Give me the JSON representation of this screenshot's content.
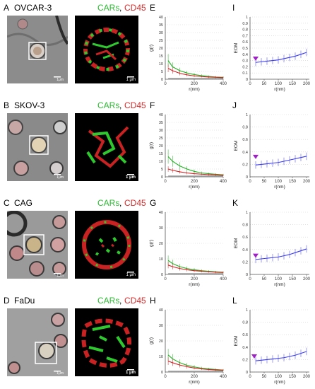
{
  "figure": {
    "rows": [
      {
        "letters": [
          "A",
          "E",
          "I"
        ],
        "cell_line": "OVCAR-3",
        "bf_scale": "1μm",
        "fl_scale": "1 μm",
        "g_ylabel": "g(r)",
        "g_xlabel": "r(nm)",
        "g_yticks": [
          "0",
          "5",
          "10",
          "15",
          "20",
          "25",
          "30",
          "35",
          "40"
        ],
        "g_xticks": [
          "0",
          "200",
          "400"
        ],
        "eom_ylabel": "EOM",
        "eom_xlabel": "r(nm)",
        "eom_yticks": [
          "0",
          "0.1",
          "0.2",
          "0.3",
          "0.4",
          "0.5",
          "0.6",
          "0.7",
          "0.8",
          "0.9",
          "1"
        ],
        "eom_xticks": [
          "0",
          "50",
          "100",
          "150",
          "200"
        ]
      },
      {
        "letters": [
          "B",
          "F",
          "J"
        ],
        "cell_line": "SKOV-3",
        "bf_scale": "1μm",
        "fl_scale": "1 μm",
        "g_ylabel": "g(r)",
        "g_xlabel": "r(nm)",
        "g_yticks": [
          "0",
          "5",
          "10",
          "15",
          "20",
          "25",
          "30",
          "35",
          "40"
        ],
        "g_xticks": [
          "0",
          "200",
          "400"
        ],
        "eom_ylabel": "EOM",
        "eom_xlabel": "r(nm)",
        "eom_yticks": [
          "0",
          "0.2",
          "0.4",
          "0.6",
          "0.8",
          "1"
        ],
        "eom_xticks": [
          "0",
          "50",
          "100",
          "150",
          "200"
        ]
      },
      {
        "letters": [
          "C",
          "G",
          "K"
        ],
        "cell_line": "CAG",
        "bf_scale": "1μm",
        "fl_scale": "1 μm",
        "g_ylabel": "g(r)",
        "g_xlabel": "r(nm)",
        "g_yticks": [
          "0",
          "10",
          "20",
          "30",
          "40"
        ],
        "g_xticks": [
          "0",
          "200",
          "400"
        ],
        "eom_ylabel": "EOM",
        "eom_xlabel": "r(nm)",
        "eom_yticks": [
          "0",
          "0.2",
          "0.4",
          "0.6",
          "0.8",
          "1"
        ],
        "eom_xticks": [
          "0",
          "50",
          "100",
          "150",
          "200"
        ]
      },
      {
        "letters": [
          "D",
          "H",
          "L"
        ],
        "cell_line": "FaDu",
        "bf_scale": "1μm",
        "fl_scale": "1 μm",
        "g_ylabel": "g(r)",
        "g_xlabel": "r(nm)",
        "g_yticks": [
          "0",
          "10",
          "20",
          "30",
          "40"
        ],
        "g_xticks": [
          "0",
          "200",
          "400"
        ],
        "eom_ylabel": "EOM",
        "eom_xlabel": "r(nm)",
        "eom_yticks": [
          "0",
          "0.2",
          "0.4",
          "0.6",
          "0.8",
          "1"
        ],
        "eom_xticks": [
          "0",
          "50",
          "100",
          "150",
          "200"
        ]
      }
    ],
    "cars_label": "CARs",
    "separator": ", ",
    "cd45_label": "CD45"
  },
  "colors": {
    "cars": "#2dbb33",
    "cd45": "#d82a2a",
    "eom_line": "#3a3aee",
    "marker": "#a020c8"
  },
  "chart_data": [
    {
      "type": "line",
      "panel": "E",
      "xlim": [
        0,
        400
      ],
      "ylim": [
        0,
        40
      ],
      "x": [
        20,
        50,
        100,
        150,
        200,
        250,
        300,
        350,
        400
      ],
      "series": [
        {
          "values": [
            12,
            8,
            5.5,
            4,
            3,
            2.3,
            1.8,
            1.4,
            1.2
          ],
          "color": "green"
        },
        {
          "values": [
            7,
            5.5,
            3.8,
            2.8,
            2.1,
            1.7,
            1.4,
            1.2,
            1.0
          ],
          "color": "red"
        },
        {
          "values": [
            0.5,
            0.5,
            0.5,
            0.5,
            0.5,
            0.5,
            0.5,
            0.5,
            0.5
          ],
          "color": "gray"
        }
      ]
    },
    {
      "type": "line",
      "panel": "F",
      "xlim": [
        0,
        400
      ],
      "ylim": [
        0,
        40
      ],
      "x": [
        20,
        50,
        100,
        150,
        200,
        250,
        300,
        350,
        400
      ],
      "series": [
        {
          "values": [
            13,
            10,
            7,
            5,
            3.5,
            2.5,
            2,
            1.6,
            1.3
          ],
          "color": "green"
        },
        {
          "values": [
            5,
            4.2,
            3.2,
            2.5,
            2,
            1.7,
            1.4,
            1.2,
            1.0
          ],
          "color": "red"
        },
        {
          "values": [
            0.5,
            0.5,
            0.5,
            0.5,
            0.5,
            0.5,
            0.5,
            0.5,
            0.5
          ],
          "color": "gray"
        }
      ]
    },
    {
      "type": "line",
      "panel": "G",
      "xlim": [
        0,
        400
      ],
      "ylim": [
        0,
        40
      ],
      "x": [
        20,
        50,
        100,
        150,
        200,
        250,
        300,
        350,
        400
      ],
      "series": [
        {
          "values": [
            9,
            7,
            5,
            3.8,
            3,
            2.4,
            2,
            1.7,
            1.4
          ],
          "color": "green"
        },
        {
          "values": [
            6,
            5,
            3.8,
            3,
            2.4,
            2,
            1.7,
            1.4,
            1.2
          ],
          "color": "red"
        },
        {
          "values": [
            0.5,
            0.5,
            0.5,
            0.5,
            0.5,
            0.5,
            0.5,
            0.5,
            0.5
          ],
          "color": "gray"
        }
      ]
    },
    {
      "type": "line",
      "panel": "H",
      "xlim": [
        0,
        400
      ],
      "ylim": [
        0,
        40
      ],
      "x": [
        20,
        50,
        100,
        150,
        200,
        250,
        300,
        350,
        400
      ],
      "series": [
        {
          "values": [
            11,
            8.5,
            6,
            4.3,
            3.3,
            2.5,
            2,
            1.6,
            1.3
          ],
          "color": "green"
        },
        {
          "values": [
            7,
            6,
            4.5,
            3.4,
            2.6,
            2,
            1.6,
            1.3,
            1.1
          ],
          "color": "red"
        },
        {
          "values": [
            0.5,
            0.5,
            0.5,
            0.5,
            0.5,
            0.5,
            0.5,
            0.5,
            0.5
          ],
          "color": "gray"
        }
      ]
    },
    {
      "type": "line",
      "panel": "I",
      "xlim": [
        0,
        210
      ],
      "ylim": [
        0,
        1
      ],
      "x": [
        20,
        40,
        60,
        80,
        100,
        120,
        140,
        160,
        180,
        200
      ],
      "series": [
        {
          "values": [
            0.27,
            0.28,
            0.29,
            0.3,
            0.31,
            0.33,
            0.35,
            0.37,
            0.4,
            0.43
          ],
          "color": "blue"
        }
      ],
      "marker": {
        "x": 20,
        "y": 0.33
      }
    },
    {
      "type": "line",
      "panel": "J",
      "xlim": [
        0,
        210
      ],
      "ylim": [
        0,
        1
      ],
      "x": [
        20,
        40,
        60,
        80,
        100,
        120,
        140,
        160,
        180,
        200
      ],
      "series": [
        {
          "values": [
            0.19,
            0.2,
            0.21,
            0.22,
            0.23,
            0.25,
            0.27,
            0.29,
            0.31,
            0.33
          ],
          "color": "blue"
        }
      ],
      "marker": {
        "x": 20,
        "y": 0.32
      }
    },
    {
      "type": "line",
      "panel": "K",
      "xlim": [
        0,
        210
      ],
      "ylim": [
        0,
        1
      ],
      "x": [
        20,
        40,
        60,
        80,
        100,
        120,
        140,
        160,
        180,
        200
      ],
      "series": [
        {
          "values": [
            0.24,
            0.25,
            0.26,
            0.27,
            0.28,
            0.3,
            0.32,
            0.35,
            0.38,
            0.41
          ],
          "color": "blue"
        }
      ],
      "marker": {
        "x": 20,
        "y": 0.3
      }
    },
    {
      "type": "line",
      "panel": "L",
      "xlim": [
        0,
        210
      ],
      "ylim": [
        0,
        1
      ],
      "x": [
        20,
        40,
        60,
        80,
        100,
        120,
        140,
        160,
        180,
        200
      ],
      "series": [
        {
          "values": [
            0.18,
            0.19,
            0.2,
            0.21,
            0.22,
            0.23,
            0.25,
            0.27,
            0.3,
            0.33
          ],
          "color": "blue"
        }
      ],
      "marker": {
        "x": 15,
        "y": 0.25
      }
    }
  ]
}
